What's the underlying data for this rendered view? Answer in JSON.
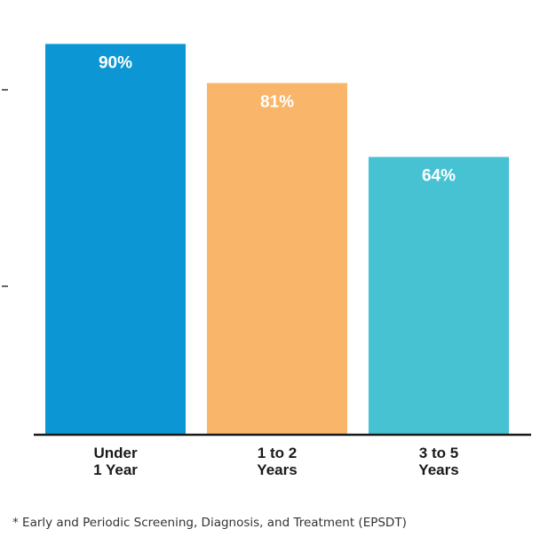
{
  "chart_data": {
    "type": "bar",
    "categories": [
      [
        "Under",
        "1 Year"
      ],
      [
        "1 to 2",
        "Years"
      ],
      [
        "3 to 5",
        "Years"
      ]
    ],
    "values": [
      90,
      81,
      64
    ],
    "data_labels": [
      "90%",
      "81%",
      "64%"
    ],
    "colors": [
      "#0c97d4",
      "#f9b56a",
      "#46c2d3"
    ],
    "ylim": [
      0,
      100
    ],
    "grid": false,
    "footnote": "* Early and Periodic Screening, Diagnosis, and Treatment (EPSDT)"
  }
}
